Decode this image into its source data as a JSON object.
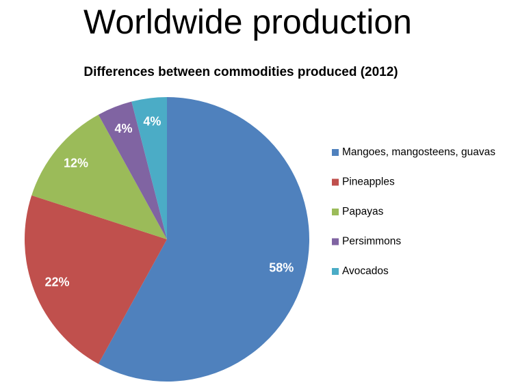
{
  "page": {
    "title": "Worldwide production"
  },
  "chart_data": {
    "type": "pie",
    "title": "Differences between commodities produced (2012)",
    "categories": [
      "Mangoes, mangosteens, guavas",
      "Pineapples",
      "Papayas",
      "Persimmons",
      "Avocados"
    ],
    "values": [
      58,
      22,
      12,
      4,
      4
    ],
    "value_labels": [
      "58%",
      "22%",
      "12%",
      "4%",
      "4%"
    ],
    "colors": [
      "#4f81bd",
      "#c0504d",
      "#9bbb59",
      "#8064a2",
      "#4bacc6"
    ],
    "legend": "right"
  }
}
